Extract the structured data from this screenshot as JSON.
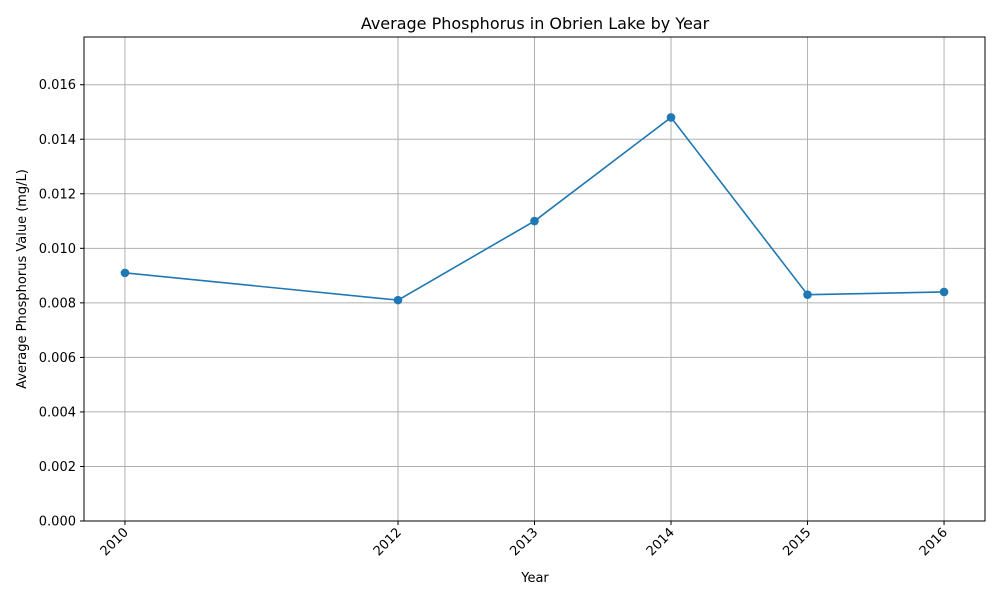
{
  "chart_data": {
    "type": "line",
    "title": "Average Phosphorus in Obrien Lake by Year",
    "xlabel": "Year",
    "ylabel": "Average Phosphorus Value (mg/L)",
    "x": [
      2010,
      2012,
      2013,
      2014,
      2015,
      2016
    ],
    "x_tick_labels": [
      "2010",
      "2012",
      "2013",
      "2014",
      "2015",
      "2016"
    ],
    "series": [
      {
        "values": [
          0.0091,
          0.0081,
          0.011,
          0.0148,
          0.0083,
          0.0084
        ],
        "color": "#1f77b4",
        "marker": "circle"
      }
    ],
    "xlim": [
      2009.7,
      2016.3
    ],
    "ylim": [
      0,
      0.01775
    ],
    "y_ticks": [
      0,
      0.002,
      0.004,
      0.006,
      0.008,
      0.01,
      0.012,
      0.014,
      0.016
    ],
    "y_tick_labels": [
      "0.000",
      "0.002",
      "0.004",
      "0.006",
      "0.008",
      "0.010",
      "0.012",
      "0.014",
      "0.016"
    ],
    "x_tick_rotation": "45 degrees",
    "grid": true,
    "grid_color": "#b0b0b0",
    "legend": false
  }
}
